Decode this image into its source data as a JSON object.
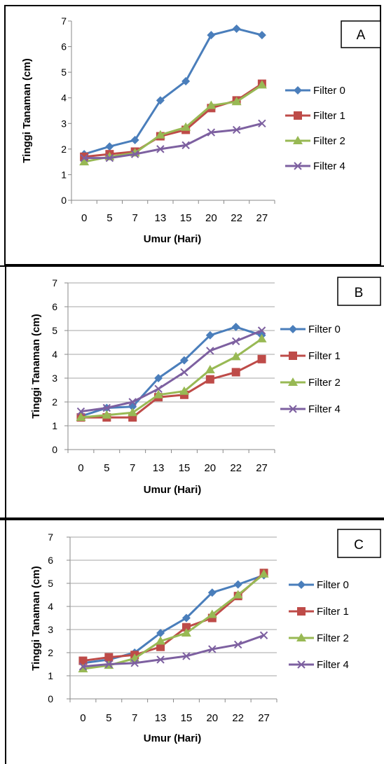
{
  "colors": {
    "filter0": "#4a7ebb",
    "filter1": "#be4b48",
    "filter2": "#98b954",
    "filter4": "#7d60a0",
    "grid": "#a6a6a6",
    "border": "#000000"
  },
  "chart_data": [
    {
      "type": "line",
      "panel_label": "A",
      "xlabel": "Umur (Hari)",
      "ylabel": "Tinggi Tanaman (cm)",
      "categories": [
        "0",
        "5",
        "7",
        "13",
        "15",
        "20",
        "22",
        "27"
      ],
      "ylim": [
        0,
        7
      ],
      "yticks": [
        "0",
        "1",
        "2",
        "3",
        "4",
        "5",
        "6",
        "7"
      ],
      "grid": false,
      "legend_position": "right",
      "series": [
        {
          "name": "Filter 0",
          "marker": "diamond",
          "values": [
            1.8,
            2.1,
            2.35,
            3.9,
            4.65,
            6.45,
            6.7,
            6.45
          ]
        },
        {
          "name": "Filter 1",
          "marker": "square",
          "values": [
            1.7,
            1.8,
            1.9,
            2.5,
            2.75,
            3.6,
            3.9,
            4.55
          ]
        },
        {
          "name": "Filter 2",
          "marker": "triangle",
          "values": [
            1.5,
            1.7,
            1.85,
            2.55,
            2.85,
            3.7,
            3.85,
            4.5
          ]
        },
        {
          "name": "Filter 4",
          "marker": "x",
          "values": [
            1.65,
            1.65,
            1.8,
            2.0,
            2.15,
            2.65,
            2.75,
            3.0
          ]
        }
      ]
    },
    {
      "type": "line",
      "panel_label": "B",
      "xlabel": "Umur (Hari)",
      "ylabel": "Tinggi Tanaman (cm)",
      "categories": [
        "0",
        "5",
        "7",
        "13",
        "15",
        "20",
        "22",
        "27"
      ],
      "ylim": [
        0,
        7
      ],
      "yticks": [
        "0",
        "1",
        "2",
        "3",
        "4",
        "5",
        "6",
        "7"
      ],
      "grid": true,
      "legend_position": "right",
      "series": [
        {
          "name": "Filter 0",
          "marker": "diamond",
          "values": [
            1.4,
            1.75,
            1.8,
            3.0,
            3.75,
            4.8,
            5.15,
            4.8
          ]
        },
        {
          "name": "Filter 1",
          "marker": "square",
          "values": [
            1.35,
            1.35,
            1.35,
            2.2,
            2.3,
            2.95,
            3.25,
            3.8
          ]
        },
        {
          "name": "Filter 2",
          "marker": "triangle",
          "values": [
            1.35,
            1.45,
            1.55,
            2.3,
            2.45,
            3.35,
            3.9,
            4.65
          ]
        },
        {
          "name": "Filter 4",
          "marker": "x",
          "values": [
            1.6,
            1.75,
            2.0,
            2.55,
            3.25,
            4.15,
            4.55,
            5.0
          ]
        }
      ]
    },
    {
      "type": "line",
      "panel_label": "C",
      "xlabel": "Umur (Hari)",
      "ylabel": "Tinggi Tanaman (cm)",
      "categories": [
        "0",
        "5",
        "7",
        "13",
        "15",
        "20",
        "22",
        "27"
      ],
      "ylim": [
        0,
        7
      ],
      "yticks": [
        "0",
        "1",
        "2",
        "3",
        "4",
        "5",
        "6",
        "7"
      ],
      "grid": true,
      "legend_position": "right",
      "series": [
        {
          "name": "Filter 0",
          "marker": "diamond",
          "values": [
            1.55,
            1.7,
            2.0,
            2.85,
            3.5,
            4.6,
            4.95,
            5.35
          ]
        },
        {
          "name": "Filter 1",
          "marker": "square",
          "values": [
            1.65,
            1.8,
            1.9,
            2.25,
            3.1,
            3.5,
            4.45,
            5.45
          ]
        },
        {
          "name": "Filter 2",
          "marker": "triangle",
          "values": [
            1.3,
            1.45,
            1.75,
            2.5,
            2.85,
            3.65,
            4.5,
            5.4
          ]
        },
        {
          "name": "Filter 4",
          "marker": "x",
          "values": [
            1.4,
            1.5,
            1.55,
            1.7,
            1.85,
            2.15,
            2.35,
            2.75
          ]
        }
      ]
    }
  ]
}
